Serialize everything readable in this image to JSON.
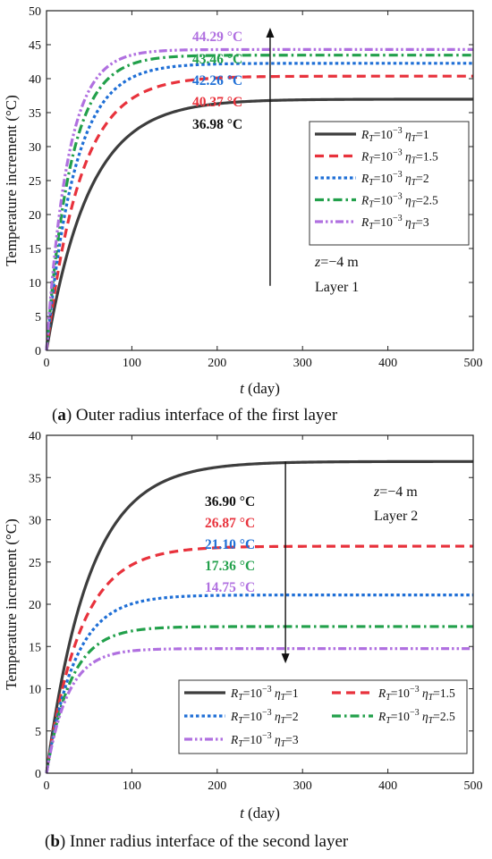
{
  "chart_data": [
    {
      "type": "line",
      "caption_id": "a",
      "caption_text": " Outer radius interface of the first layer",
      "xlabel_var": "t",
      "xlabel_unit": " (day)",
      "ylabel": "Temperature increment (°C)",
      "xlim": [
        0,
        500
      ],
      "ylim": [
        0,
        50
      ],
      "xticks": [
        0,
        100,
        200,
        300,
        400,
        500
      ],
      "yticks": [
        0,
        5,
        10,
        15,
        20,
        25,
        30,
        35,
        40,
        45,
        50
      ],
      "note_z": "z",
      "note_z_rest": "=−4 m",
      "note_layer": "Layer 1",
      "legend_layout": "one-column, right",
      "series": [
        {
          "label": "R_T=10^-3  η_T=1",
          "R": "R",
          "R_sub": "T",
          "R_eq": "=10",
          "R_exp": "−3",
          "eta": "η",
          "eta_sub": "T",
          "eta_val": "=1",
          "color": "#3d3d3d",
          "style": "solid",
          "final": 36.98,
          "k": 0.02
        },
        {
          "label": "R_T=10^-3  η_T=1.5",
          "R": "R",
          "R_sub": "T",
          "R_eq": "=10",
          "R_exp": "−3",
          "eta": "η",
          "eta_sub": "T",
          "eta_val": "=1.5",
          "color": "#e8323c",
          "style": "dash",
          "final": 40.37,
          "k": 0.025
        },
        {
          "label": "R_T=10^-3  η_T=2",
          "R": "R",
          "R_sub": "T",
          "R_eq": "=10",
          "R_exp": "−3",
          "eta": "η",
          "eta_sub": "T",
          "eta_val": "=2",
          "color": "#1f6fd6",
          "style": "dot",
          "final": 42.26,
          "k": 0.03
        },
        {
          "label": "R_T=10^-3  η_T=2.5",
          "R": "R",
          "R_sub": "T",
          "R_eq": "=10",
          "R_exp": "−3",
          "eta": "η",
          "eta_sub": "T",
          "eta_val": "=2.5",
          "color": "#22a04b",
          "style": "dashdot",
          "final": 43.46,
          "k": 0.035
        },
        {
          "label": "R_T=10^-3  η_T=3",
          "R": "R",
          "R_sub": "T",
          "R_eq": "=10",
          "R_exp": "−3",
          "eta": "η",
          "eta_sub": "T",
          "eta_val": "=3",
          "color": "#b070e0",
          "style": "dashdotdot",
          "final": 44.29,
          "k": 0.04
        }
      ],
      "annotations": [
        {
          "text": "44.29 °C",
          "color": "#b070e0"
        },
        {
          "text": "43.46 °C",
          "color": "#22a04b"
        },
        {
          "text": "42.26 °C",
          "color": "#1f6fd6"
        },
        {
          "text": "40.37 °C",
          "color": "#e8323c"
        },
        {
          "text": "36.98 °C",
          "color": "#111111"
        }
      ],
      "arrow": {
        "x": 262,
        "from_y": 9.5,
        "to_y": 47.5
      }
    },
    {
      "type": "line",
      "caption_id": "b",
      "caption_text": " Inner radius interface of the second layer",
      "xlabel_var": "t",
      "xlabel_unit": " (day)",
      "ylabel": "Temperature increment (°C)",
      "xlim": [
        0,
        500
      ],
      "ylim": [
        0,
        40
      ],
      "xticks": [
        0,
        100,
        200,
        300,
        400,
        500
      ],
      "yticks": [
        0,
        5,
        10,
        15,
        20,
        25,
        30,
        35,
        40
      ],
      "note_z": "z",
      "note_z_rest": "=−4 m",
      "note_layer": "Layer 2",
      "legend_layout": "two-column, bottom-right",
      "series": [
        {
          "label": "R_T=10^-3  η_T=1",
          "R": "R",
          "R_sub": "T",
          "R_eq": "=10",
          "R_exp": "−3",
          "eta": "η",
          "eta_sub": "T",
          "eta_val": "=1",
          "color": "#3d3d3d",
          "style": "solid",
          "final": 36.9,
          "k": 0.02
        },
        {
          "label": "R_T=10^-3  η_T=1.5",
          "R": "R",
          "R_sub": "T",
          "R_eq": "=10",
          "R_exp": "−3",
          "eta": "η",
          "eta_sub": "T",
          "eta_val": "=1.5",
          "color": "#e8323c",
          "style": "dash",
          "final": 26.87,
          "k": 0.025
        },
        {
          "label": "R_T=10^-3  η_T=2",
          "R": "R",
          "R_sub": "T",
          "R_eq": "=10",
          "R_exp": "−3",
          "eta": "η",
          "eta_sub": "T",
          "eta_val": "=2",
          "color": "#1f6fd6",
          "style": "dot",
          "final": 21.1,
          "k": 0.03
        },
        {
          "label": "R_T=10^-3  η_T=2.5",
          "R": "R",
          "R_sub": "T",
          "R_eq": "=10",
          "R_exp": "−3",
          "eta": "η",
          "eta_sub": "T",
          "eta_val": "=2.5",
          "color": "#22a04b",
          "style": "dashdot",
          "final": 17.36,
          "k": 0.035
        },
        {
          "label": "R_T=10^-3  η_T=3",
          "R": "R",
          "R_sub": "T",
          "R_eq": "=10",
          "R_exp": "−3",
          "eta": "η",
          "eta_sub": "T",
          "eta_val": "=3",
          "color": "#b070e0",
          "style": "dashdotdot",
          "final": 14.75,
          "k": 0.04
        }
      ],
      "annotations": [
        {
          "text": "36.90 °C",
          "color": "#111111"
        },
        {
          "text": "26.87 °C",
          "color": "#e8323c"
        },
        {
          "text": "21.10 °C",
          "color": "#1f6fd6"
        },
        {
          "text": "17.36 °C",
          "color": "#22a04b"
        },
        {
          "text": "14.75 °C",
          "color": "#b070e0"
        }
      ],
      "arrow": {
        "x": 280,
        "from_y": 36.9,
        "to_y": 13
      }
    }
  ]
}
